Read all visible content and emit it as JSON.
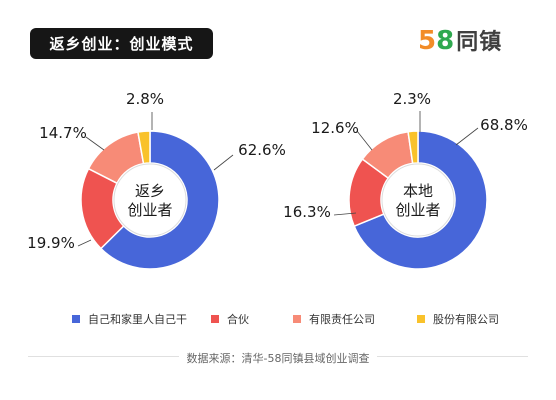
{
  "header": {
    "title": "返乡创业：创业模式"
  },
  "logo": {
    "digit1": "5",
    "digit2": "8",
    "text": "同镇",
    "color1": "#f28c28",
    "color2": "#2fa84f"
  },
  "chart_data": [
    {
      "type": "pie",
      "center_label": [
        "返乡",
        "创业者"
      ],
      "categories": [
        "自己和家里人自己干",
        "合伙",
        "有限责任公司",
        "股份有限公司"
      ],
      "values": [
        62.6,
        19.9,
        14.7,
        2.8
      ],
      "value_labels": [
        "62.6%",
        "19.9%",
        "14.7%",
        "2.8%"
      ]
    },
    {
      "type": "pie",
      "center_label": [
        "本地",
        "创业者"
      ],
      "categories": [
        "自己和家里人自己干",
        "合伙",
        "有限责任公司",
        "股份有限公司"
      ],
      "values": [
        68.8,
        16.3,
        12.6,
        2.3
      ],
      "value_labels": [
        "68.8%",
        "16.3%",
        "12.6%",
        "2.3%"
      ]
    }
  ],
  "legend": [
    {
      "label": "自己和家里人自己干",
      "color": "#4766d9"
    },
    {
      "label": "合伙",
      "color": "#ef5350"
    },
    {
      "label": "有限责任公司",
      "color": "#f78b77"
    },
    {
      "label": "股份有限公司",
      "color": "#f9c22b"
    }
  ],
  "footer": {
    "source": "数据来源：清华-58同镇县域创业调查"
  }
}
